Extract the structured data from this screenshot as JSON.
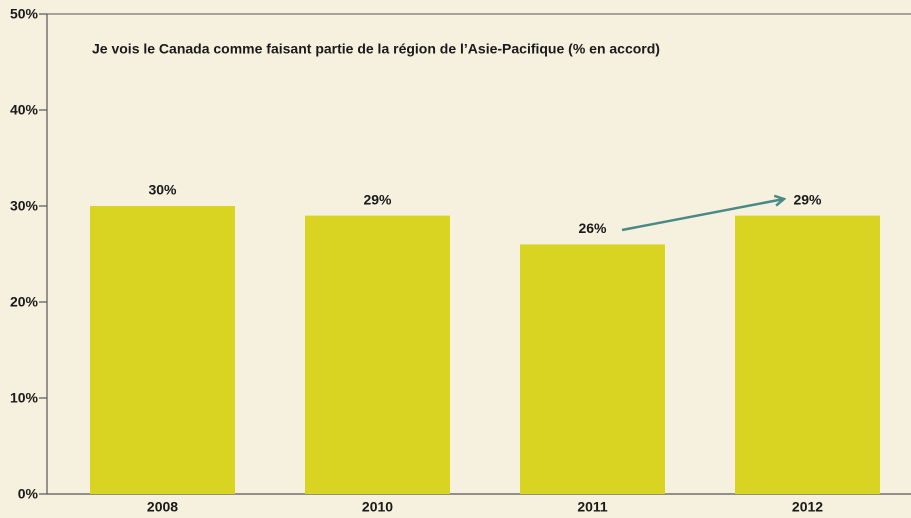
{
  "chart_data": {
    "type": "bar",
    "title": "Je vois le Canada comme faisant partie de la région de l’Asie-Pacifique (% en accord)",
    "categories": [
      "2008",
      "2010",
      "2011",
      "2012"
    ],
    "values": [
      30,
      29,
      26,
      29
    ],
    "value_labels": [
      "30%",
      "29%",
      "26%",
      "29%"
    ],
    "color": "#d9d422",
    "ylim": [
      0,
      50
    ],
    "yticks": [
      {
        "value": 0,
        "label": "0%"
      },
      {
        "value": 10,
        "label": "10%"
      },
      {
        "value": 20,
        "label": "20%"
      },
      {
        "value": 30,
        "label": "30%"
      },
      {
        "value": 40,
        "label": "40%"
      },
      {
        "value": 50,
        "label": "50%"
      }
    ],
    "grid": false
  }
}
